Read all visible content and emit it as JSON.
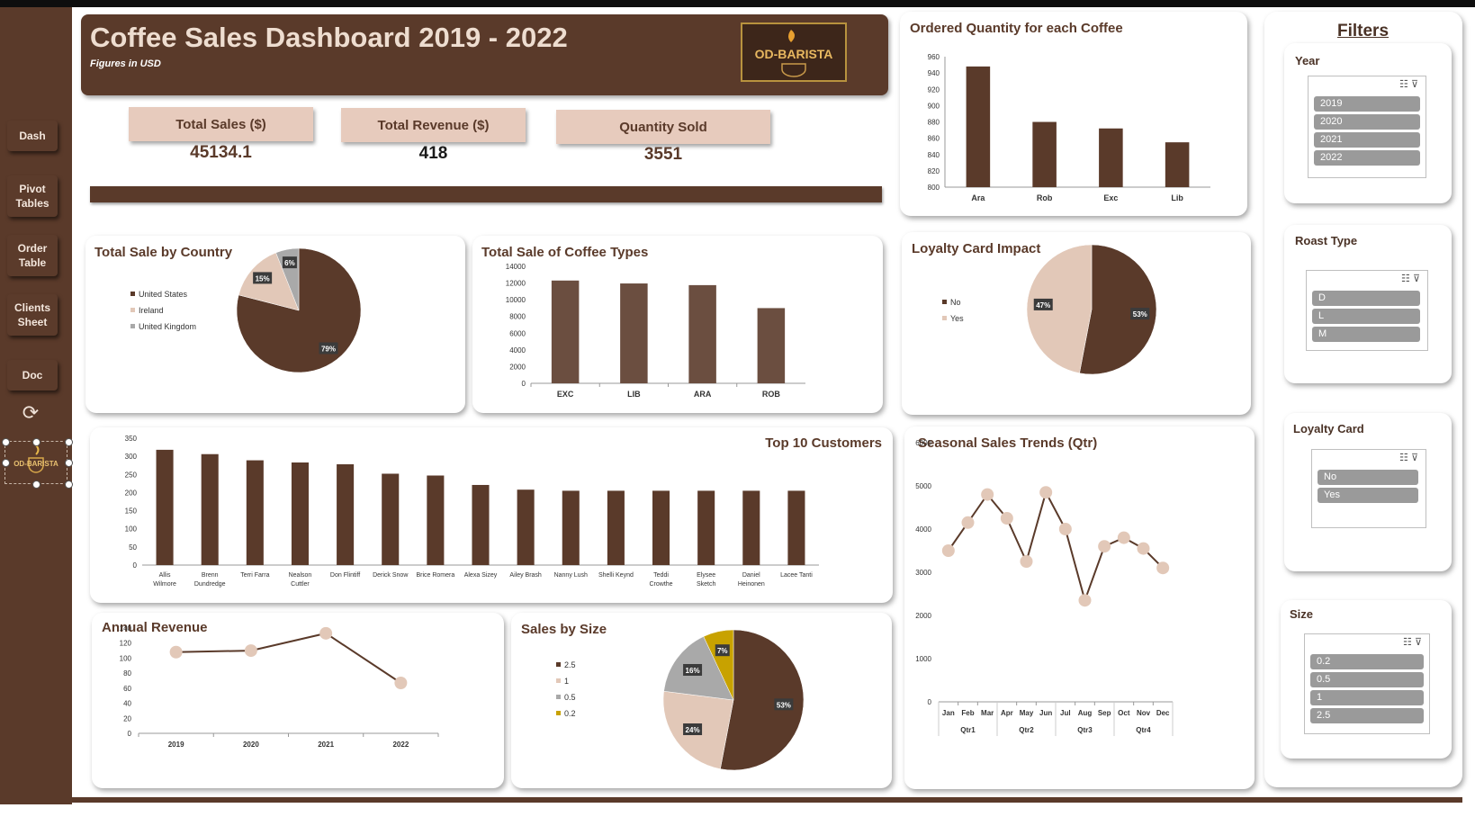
{
  "header": {
    "title": "Coffee Sales Dashboard 2019 - 2022",
    "subtitle": "Figures in USD",
    "logo_text": "OD-BARISTA"
  },
  "nav": {
    "items": [
      {
        "label": "Dash"
      },
      {
        "label": "Pivot\nTables"
      },
      {
        "label": "Order\nTable"
      },
      {
        "label": "Clients\nSheet"
      },
      {
        "label": "Doc"
      }
    ],
    "logo_text": "OD-BARISTA"
  },
  "kpis": {
    "total_sales_label": "Total Sales ($)",
    "total_sales_value": "45134.1",
    "total_revenue_label": "Total Revenue ($)",
    "total_revenue_value": "418",
    "quantity_label": "Quantity Sold",
    "quantity_value": "3551"
  },
  "filters": {
    "title": "Filters",
    "year": {
      "label": "Year",
      "options": [
        "2019",
        "2020",
        "2021",
        "2022"
      ]
    },
    "roast": {
      "label": "Roast Type",
      "options": [
        "D",
        "L",
        "M"
      ]
    },
    "loyalty": {
      "label": "Loyalty Card",
      "options": [
        "No",
        "Yes"
      ]
    },
    "size": {
      "label": "Size",
      "options": [
        "0.2",
        "0.5",
        "1",
        "2.5"
      ]
    }
  },
  "colors": {
    "brown": "#5a3a2a",
    "beige": "#e2c8b8",
    "gray": "#a9a9a9",
    "gold": "#c8a200",
    "bar": "#6b4e40"
  },
  "chart_data": [
    {
      "id": "ordered_quantity",
      "type": "bar",
      "title": "Ordered Quantity for each Coffee",
      "categories": [
        "Ara",
        "Rob",
        "Exc",
        "Lib"
      ],
      "values": [
        948,
        880,
        872,
        855
      ],
      "ylim": [
        800,
        960
      ],
      "yticks": [
        800,
        820,
        840,
        860,
        880,
        900,
        920,
        940,
        960
      ]
    },
    {
      "id": "sale_by_country",
      "type": "pie",
      "title": "Total Sale by Country",
      "labels": [
        "United States",
        "Ireland",
        "United Kingdom"
      ],
      "values": [
        79,
        15,
        6
      ],
      "data_labels": [
        "79%",
        "15%",
        "6%"
      ]
    },
    {
      "id": "coffee_types",
      "type": "bar",
      "title": "Total Sale of Coffee Types",
      "categories": [
        "EXC",
        "LIB",
        "ARA",
        "ROB"
      ],
      "values": [
        12300,
        11950,
        11750,
        9000
      ],
      "ylim": [
        0,
        14000
      ],
      "yticks": [
        0,
        2000,
        4000,
        6000,
        8000,
        10000,
        12000,
        14000
      ]
    },
    {
      "id": "loyalty",
      "type": "pie",
      "title": "Loyalty Card Impact",
      "labels": [
        "No",
        "Yes"
      ],
      "values": [
        53,
        47
      ],
      "data_labels": [
        "53%",
        "47%"
      ]
    },
    {
      "id": "top_customers",
      "type": "bar",
      "title": "Top 10 Customers",
      "categories": [
        "Allis Wilmore",
        "Brenn Dundredge",
        "Terri Farra",
        "Nealson Cuttler",
        "Don Flintiff",
        "Derick Snow",
        "Brice Romera",
        "Alexa Sizey",
        "Ailey Brash",
        "Nanny Lush",
        "Shelli Keynd",
        "Teddi Crowthe",
        "Elysee Sketch",
        "Daniel Heinonen",
        "Lacee Tanti"
      ],
      "values": [
        318,
        306,
        289,
        283,
        278,
        252,
        247,
        221,
        208,
        205,
        205,
        205,
        205,
        205,
        205
      ],
      "ylim": [
        0,
        350
      ],
      "yticks": [
        0,
        50,
        100,
        150,
        200,
        250,
        300,
        350
      ]
    },
    {
      "id": "seasonal",
      "type": "line",
      "title": "Seasonal Sales Trends (Qtr)",
      "categories": [
        "Jan",
        "Feb",
        "Mar",
        "Apr",
        "May",
        "Jun",
        "Jul",
        "Aug",
        "Sep",
        "Oct",
        "Nov",
        "Dec"
      ],
      "groups": [
        "Qtr1",
        "Qtr2",
        "Qtr3",
        "Qtr4"
      ],
      "values": [
        3500,
        4150,
        4800,
        4250,
        3250,
        4850,
        4000,
        2350,
        3600,
        3800,
        3550,
        3100
      ],
      "ylim": [
        0,
        6000
      ],
      "yticks": [
        0,
        1000,
        2000,
        3000,
        4000,
        5000,
        6000
      ]
    },
    {
      "id": "annual_revenue",
      "type": "line",
      "title": "Annual Revenue",
      "categories": [
        "2019",
        "2020",
        "2021",
        "2022"
      ],
      "values": [
        108,
        110,
        133,
        67
      ],
      "ylim": [
        0,
        140
      ],
      "yticks": [
        0,
        20,
        40,
        60,
        80,
        100,
        120,
        140
      ]
    },
    {
      "id": "sales_by_size",
      "type": "pie",
      "title": "Sales by Size",
      "labels": [
        "2.5",
        "1",
        "0.5",
        "0.2"
      ],
      "values": [
        53,
        24,
        16,
        7
      ],
      "data_labels": [
        "53%",
        "24%",
        "16%",
        "7%"
      ]
    }
  ]
}
